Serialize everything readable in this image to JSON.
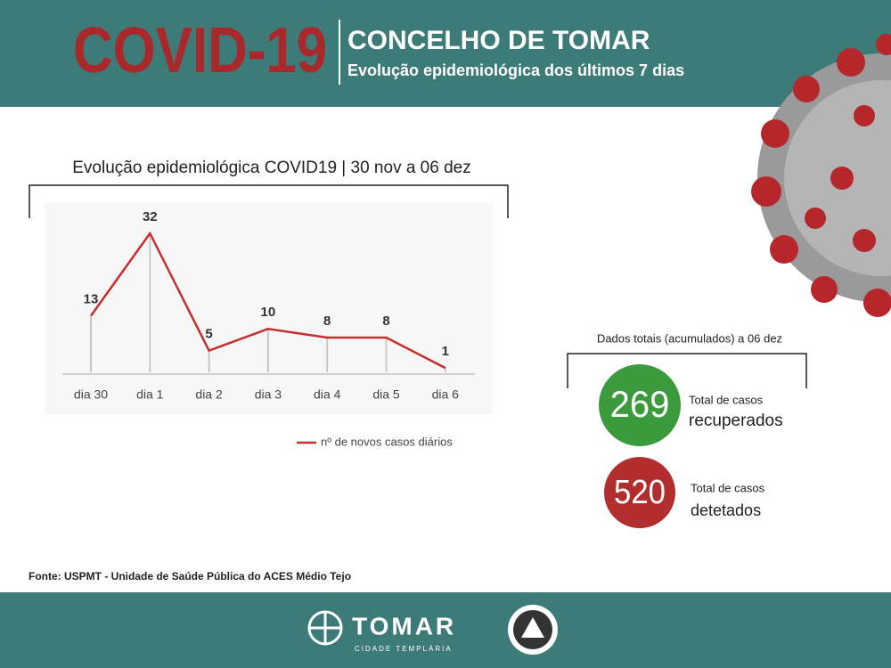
{
  "header": {
    "title": "COVID-19",
    "region": "CONCELHO DE TOMAR",
    "subtitle": "Evolução epidemiológica dos últimos 7 dias"
  },
  "chart_data": {
    "type": "line",
    "title": "Evolução epidemiológica COVID19 | 30 nov a 06 dez",
    "categories": [
      "dia 30",
      "dia 1",
      "dia 2",
      "dia 3",
      "dia 4",
      "dia 5",
      "dia 6"
    ],
    "series": [
      {
        "name": "nº de novos casos diários",
        "color": "#c62d2d",
        "values": [
          13,
          32,
          5,
          10,
          8,
          8,
          1
        ]
      }
    ]
  },
  "totals": {
    "heading": "Dados totais (acumulados) a 06 dez",
    "items": [
      {
        "value": 269,
        "line1": "Total de casos",
        "line2": "recuperados",
        "color": "#3a9a3c"
      },
      {
        "value": 520,
        "line1": "Total de casos",
        "line2": "detetados",
        "color": "#b22d2d"
      }
    ]
  },
  "source": "Fonte: USPMT - Unidade de Saúde Pública do ACES Médio Tejo",
  "footer": {
    "brand": "TOMAR",
    "tagline": "CIDADE TEMPLÁRIA"
  }
}
